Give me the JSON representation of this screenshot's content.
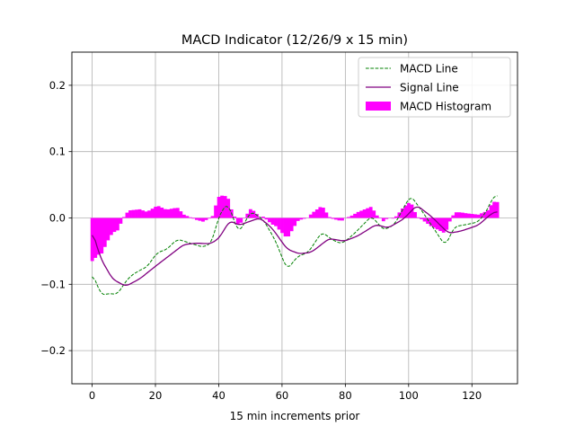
{
  "chart_data": {
    "type": "line",
    "title": "MACD Indicator (12/26/9 x 15 min)",
    "xlabel": "15 min increments prior",
    "ylabel": "",
    "xlim": [
      -6.4,
      134.4
    ],
    "ylim": [
      -0.25,
      0.25
    ],
    "xticks": [
      0,
      20,
      40,
      60,
      80,
      100,
      120
    ],
    "xtick_labels": [
      "0",
      "20",
      "40",
      "60",
      "80",
      "100",
      "120"
    ],
    "yticks": [
      0.2,
      0.1,
      0.0,
      -0.1,
      -0.2
    ],
    "ytick_labels": [
      "0.2",
      "0.1",
      "0.0",
      "−0.1",
      "−0.2"
    ],
    "grid": true,
    "legend_position": "top-right",
    "series": [
      {
        "name": "MACD Line",
        "style": "dashed",
        "color": "#008000",
        "x": [
          0,
          3,
          5,
          8,
          10,
          12,
          15,
          17.3,
          20.6,
          23.4,
          26.9,
          31,
          35,
          37.8,
          39.7,
          41.6,
          43,
          46.3,
          50.2,
          54,
          57.8,
          61.6,
          64.9,
          68.3,
          72.6,
          75.9,
          78.8,
          81.6,
          84,
          88.3,
          92,
          95.4,
          98.3,
          100.6,
          104,
          107.8,
          111.6,
          114.5,
          118.3,
          122,
          124.9,
          126.6,
          128
        ],
        "y": [
          -0.083,
          -0.117,
          -0.114,
          -0.115,
          -0.1,
          -0.088,
          -0.079,
          -0.074,
          -0.052,
          -0.048,
          -0.032,
          -0.038,
          -0.044,
          -0.038,
          -0.002,
          0.016,
          0.021,
          -0.023,
          0.01,
          -0.002,
          -0.033,
          -0.078,
          -0.058,
          -0.052,
          -0.021,
          -0.033,
          -0.039,
          -0.029,
          -0.018,
          0.003,
          -0.018,
          -0.011,
          0.014,
          0.034,
          0.012,
          -0.015,
          -0.042,
          -0.013,
          -0.01,
          -0.006,
          0.012,
          0.032,
          0.034
        ]
      },
      {
        "name": "Signal Line",
        "style": "solid",
        "color": "#800080",
        "x": [
          0,
          2.6,
          6.4,
          10.6,
          15,
          19.7,
          24.6,
          29,
          33,
          37.4,
          40,
          42.6,
          43.5,
          46.3,
          53,
          56.8,
          61.6,
          65.4,
          69.2,
          74.9,
          79.7,
          84,
          89.7,
          93.5,
          98.3,
          102.6,
          107,
          112.6,
          116.4,
          122,
          126.3,
          128
        ],
        "y": [
          -0.018,
          -0.06,
          -0.092,
          -0.103,
          -0.092,
          -0.074,
          -0.056,
          -0.04,
          -0.038,
          -0.039,
          -0.031,
          -0.011,
          -0.004,
          -0.011,
          0.0,
          -0.015,
          -0.047,
          -0.054,
          -0.052,
          -0.031,
          -0.035,
          -0.027,
          -0.01,
          -0.015,
          -0.002,
          0.019,
          0.003,
          -0.023,
          -0.02,
          -0.011,
          0.007,
          0.01
        ]
      },
      {
        "name": "MACD Histogram",
        "style": "bar",
        "color": "#ff00ff"
      }
    ]
  }
}
